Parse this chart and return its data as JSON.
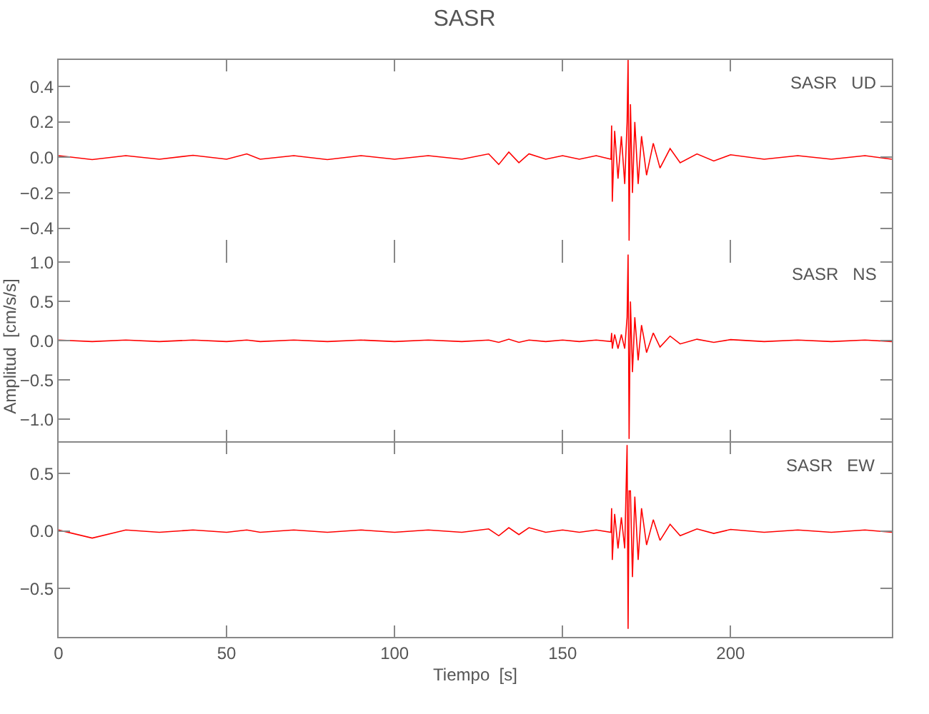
{
  "chart_data": [
    {
      "type": "line",
      "title": "SASR",
      "annotations": [
        "SASR   UD"
      ],
      "x": [
        0,
        10,
        20,
        30,
        40,
        50,
        56,
        60,
        70,
        80,
        90,
        100,
        110,
        120,
        128,
        131,
        134,
        137,
        140,
        145,
        150,
        155,
        160,
        164.4,
        164.6,
        164.8,
        165.5,
        166.5,
        167.5,
        168.5,
        169.2,
        169.5,
        169.8,
        170.2,
        170.8,
        171.5,
        172.5,
        173.5,
        175,
        177,
        179,
        182,
        185,
        190,
        195,
        200,
        210,
        220,
        230,
        240,
        248
      ],
      "series": [
        {
          "color": "#ff0000",
          "values": [
            0.01,
            -0.012,
            0.01,
            -0.01,
            0.012,
            -0.01,
            0.02,
            -0.01,
            0.01,
            -0.012,
            0.01,
            -0.01,
            0.01,
            -0.01,
            0.02,
            -0.04,
            0.03,
            -0.03,
            0.02,
            -0.01,
            0.01,
            -0.01,
            0.01,
            -0.01,
            0.18,
            -0.25,
            0.15,
            -0.12,
            0.12,
            -0.15,
            0.2,
            0.55,
            -0.47,
            0.3,
            -0.2,
            0.2,
            -0.15,
            0.12,
            -0.1,
            0.08,
            -0.06,
            0.05,
            -0.03,
            0.02,
            -0.02,
            0.015,
            -0.01,
            0.01,
            -0.01,
            0.01,
            -0.01
          ]
        }
      ],
      "xlim": [
        0,
        248
      ],
      "xticks": [
        0,
        50,
        100,
        150,
        200
      ],
      "ylim": [
        -0.53,
        0.55
      ],
      "yticks": [
        {
          "value": -0.4,
          "label": "−0.4"
        },
        {
          "value": -0.2,
          "label": "−0.2"
        },
        {
          "value": 0,
          "label": "0.0"
        },
        0.2,
        0.4
      ],
      "tick_labels": "y"
    },
    {
      "type": "line",
      "ylabel": "Amplitud  [cm/s/s]",
      "annotations": [
        "SASR   NS"
      ],
      "x": [
        0,
        10,
        20,
        30,
        40,
        50,
        56,
        60,
        70,
        80,
        90,
        100,
        110,
        120,
        128,
        131,
        134,
        137,
        140,
        145,
        150,
        155,
        160,
        164.4,
        164.6,
        164.8,
        165.5,
        166.5,
        167.5,
        168.5,
        169.2,
        169.5,
        169.8,
        170.2,
        170.8,
        171.5,
        172.5,
        173.5,
        175,
        177,
        179,
        182,
        185,
        190,
        195,
        200,
        210,
        220,
        230,
        240,
        248
      ],
      "series": [
        {
          "color": "#ff0000",
          "values": [
            0.01,
            -0.01,
            0.01,
            -0.01,
            0.01,
            -0.01,
            0.01,
            -0.01,
            0.01,
            -0.01,
            0.01,
            -0.01,
            0.01,
            -0.01,
            0.01,
            -0.02,
            0.02,
            -0.02,
            0.01,
            -0.01,
            0.01,
            -0.01,
            0.01,
            -0.01,
            0.1,
            -0.1,
            0.08,
            -0.1,
            0.08,
            -0.1,
            0.3,
            1.1,
            -1.25,
            0.5,
            -0.4,
            0.3,
            -0.25,
            0.2,
            -0.15,
            0.1,
            -0.08,
            0.06,
            -0.04,
            0.02,
            -0.02,
            0.015,
            -0.01,
            0.01,
            -0.01,
            0.01,
            -0.01
          ]
        }
      ],
      "xlim": [
        0,
        248
      ],
      "xticks": [
        0,
        50,
        100,
        150,
        200
      ],
      "ylim": [
        -1.28,
        1.14
      ],
      "yticks": [
        {
          "value": -1,
          "label": "−1.0"
        },
        {
          "value": -0.5,
          "label": "−0.5"
        },
        {
          "value": 0,
          "label": "0.0"
        },
        0.5,
        {
          "value": 1,
          "label": "1.0"
        }
      ],
      "tick_labels": "y"
    },
    {
      "type": "line",
      "xlabel": "Tiempo  [s]",
      "annotations": [
        "SASR   EW"
      ],
      "x": [
        0,
        10,
        20,
        30,
        40,
        50,
        56,
        60,
        70,
        80,
        90,
        100,
        110,
        120,
        128,
        131,
        134,
        137,
        140,
        145,
        150,
        155,
        160,
        164.4,
        164.6,
        164.8,
        165.5,
        166.5,
        167.5,
        168.5,
        169.2,
        169.5,
        169.8,
        170.2,
        170.8,
        171.5,
        172.5,
        173.5,
        175,
        177,
        179,
        182,
        185,
        190,
        195,
        200,
        210,
        220,
        230,
        240,
        248
      ],
      "series": [
        {
          "color": "#ff0000",
          "values": [
            0.01,
            -0.06,
            0.01,
            -0.01,
            0.01,
            -0.01,
            0.01,
            -0.01,
            0.01,
            -0.01,
            0.01,
            -0.01,
            0.01,
            -0.01,
            0.02,
            -0.04,
            0.03,
            -0.03,
            0.03,
            -0.01,
            0.01,
            -0.01,
            0.01,
            -0.01,
            0.2,
            -0.25,
            0.15,
            -0.15,
            0.12,
            -0.15,
            0.75,
            -0.85,
            0.35,
            0.35,
            -0.4,
            0.3,
            -0.25,
            0.2,
            -0.12,
            0.1,
            -0.08,
            0.06,
            -0.04,
            0.02,
            -0.02,
            0.015,
            -0.01,
            0.01,
            -0.01,
            0.01,
            -0.01
          ]
        }
      ],
      "xlim": [
        0,
        248
      ],
      "xticks": [
        0,
        50,
        100,
        150,
        200
      ],
      "ylim": [
        -0.92,
        0.77
      ],
      "yticks": [
        {
          "value": -0.5,
          "label": "−0.5"
        },
        {
          "value": 0,
          "label": "0.0"
        },
        0.5
      ]
    }
  ]
}
